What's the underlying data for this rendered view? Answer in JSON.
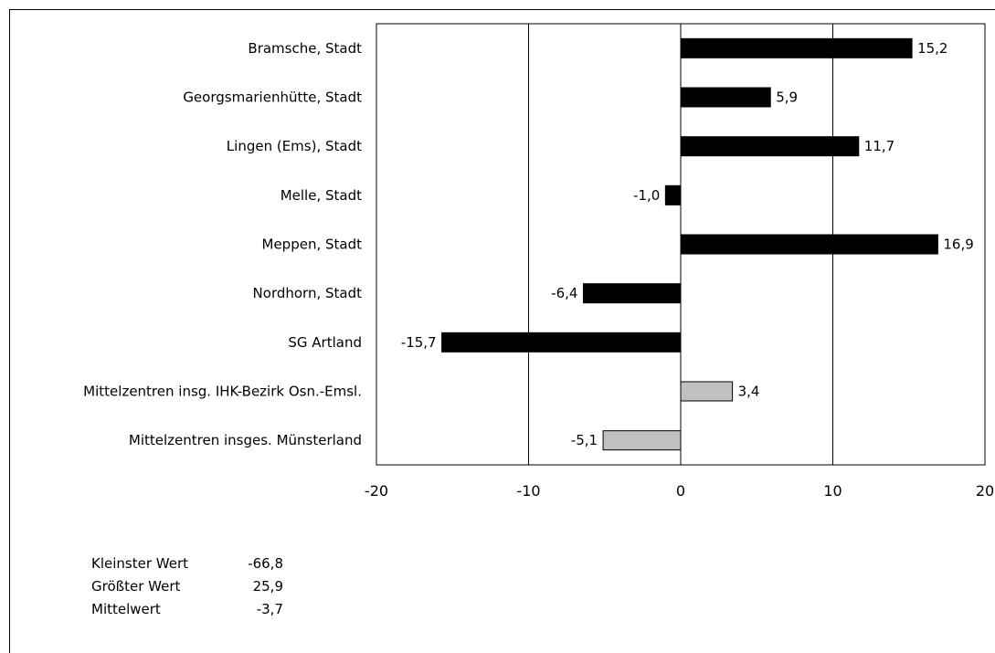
{
  "chart_data": {
    "type": "bar",
    "orientation": "horizontal",
    "categories": [
      "Bramsche, Stadt",
      "Georgsmarienhütte, Stadt",
      "Lingen (Ems), Stadt",
      "Melle, Stadt",
      "Meppen, Stadt",
      "Nordhorn, Stadt",
      "SG Artland",
      "Mittelzentren insg. IHK-Bezirk Osn.-Emsl.",
      "Mittelzentren insges. Münsterland"
    ],
    "values": [
      15.2,
      5.9,
      11.7,
      -1.0,
      16.9,
      -6.4,
      -15.7,
      3.4,
      -5.1
    ],
    "value_labels": [
      "15,2",
      "5,9",
      "11,7",
      "-1,0",
      "16,9",
      "-6,4",
      "-15,7",
      "3,4",
      "-5,1"
    ],
    "bar_colors": [
      "#000000",
      "#000000",
      "#000000",
      "#000000",
      "#000000",
      "#000000",
      "#000000",
      "#c0c0c0",
      "#c0c0c0"
    ],
    "xlim": [
      -20,
      20
    ],
    "x_ticks": [
      -20,
      -10,
      0,
      10,
      20
    ],
    "x_tick_labels": [
      "-20",
      "-10",
      "0",
      "10",
      "20"
    ],
    "grid": "vertical",
    "title": "",
    "xlabel": "",
    "ylabel": ""
  },
  "stats": [
    {
      "name": "Kleinster Wert",
      "value": "-66,8"
    },
    {
      "name": "Größter Wert",
      "value": "25,9"
    },
    {
      "name": "Mittelwert",
      "value": "-3,7"
    }
  ]
}
